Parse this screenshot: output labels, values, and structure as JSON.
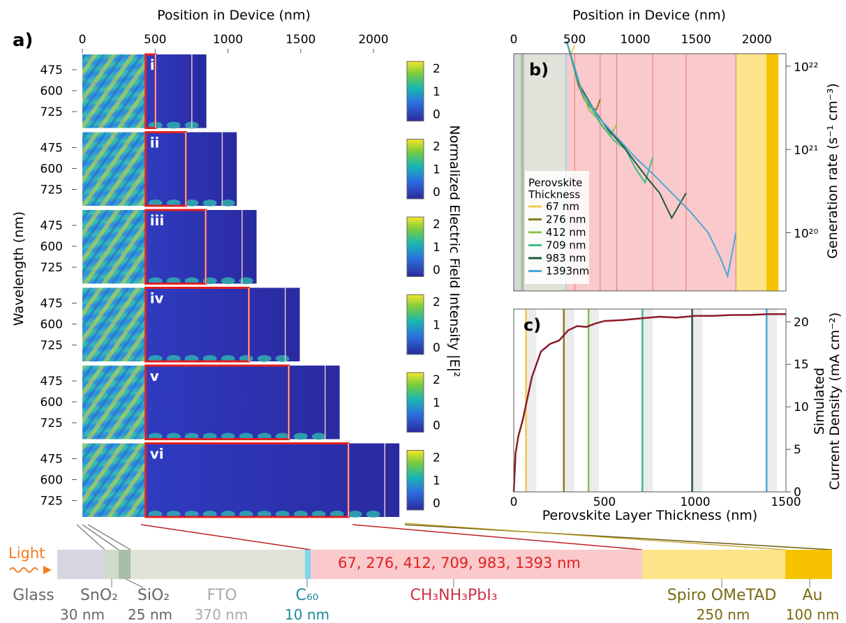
{
  "panel_a": {
    "label": "a)",
    "top_axis_label": "Position in Device (nm)",
    "top_ticks": [
      "0",
      "500",
      "1000",
      "1500",
      "2000"
    ],
    "ylabel": "Wavelength (nm)",
    "y_ticks": [
      "475",
      "600",
      "725"
    ],
    "colorbar_label": "Normalized Electric Field Intensity  |E|²",
    "colorbar_ticks": [
      "2",
      "1",
      "0"
    ],
    "subpanels": [
      {
        "roman": "i",
        "perovskite_nm": 67
      },
      {
        "roman": "ii",
        "perovskite_nm": 276
      },
      {
        "roman": "iii",
        "perovskite_nm": 412
      },
      {
        "roman": "iv",
        "perovskite_nm": 709
      },
      {
        "roman": "v",
        "perovskite_nm": 983
      },
      {
        "roman": "vi",
        "perovskite_nm": 1393
      }
    ]
  },
  "chart_data": [
    {
      "type": "line",
      "panel": "b)",
      "title": "",
      "xlabel": "Position in Device (nm)",
      "ylabel": "Generation rate (s⁻¹ cm⁻³)",
      "x_ticks": [
        "0",
        "500",
        "1000",
        "1500",
        "2000"
      ],
      "y_ticks": [
        "10²²",
        "10²¹",
        "10²⁰"
      ],
      "yscale": "log",
      "legend_title": "Perovskite Thickness",
      "legend_placement": "center-left",
      "series": [
        {
          "name": "67 nm",
          "color": "#f2c94c",
          "x": [
            435,
            470,
            502
          ],
          "y": [
            2e+22,
            1.4e+22,
            1.8e+22
          ]
        },
        {
          "name": "276 nm",
          "color": "#8a7a1c",
          "x": [
            435,
            480,
            530,
            580,
            630,
            680,
            711
          ],
          "y": [
            2e+22,
            1.2e+22,
            6e+21,
            4e+21,
            3.2e+21,
            3e+21,
            4e+21
          ]
        },
        {
          "name": "412 nm",
          "color": "#8bc34a",
          "x": [
            435,
            500,
            560,
            620,
            680,
            740,
            800,
            847
          ],
          "y": [
            2e+22,
            1e+22,
            5e+21,
            3e+21,
            2.4e+21,
            1.8e+21,
            1.5e+21,
            2e+21
          ]
        },
        {
          "name": "709 nm",
          "color": "#3cbf86",
          "x": [
            435,
            520,
            620,
            720,
            820,
            920,
            1000,
            1080,
            1144
          ],
          "y": [
            2e+22,
            7e+21,
            3.5e+21,
            2e+21,
            1.3e+21,
            1e+21,
            6e+20,
            4e+20,
            8e+20
          ]
        },
        {
          "name": "983 nm",
          "color": "#1e5a3c",
          "x": [
            435,
            540,
            660,
            780,
            900,
            1000,
            1100,
            1200,
            1300,
            1418
          ],
          "y": [
            2e+22,
            6e+21,
            3e+21,
            1.7e+21,
            1.1e+21,
            7e+20,
            4.5e+20,
            3e+20,
            1.5e+20,
            3e+20
          ]
        },
        {
          "name": "1393nm",
          "color": "#4aa8d8",
          "x": [
            435,
            560,
            700,
            850,
            1000,
            1150,
            1300,
            1450,
            1600,
            1700,
            1760,
            1828
          ],
          "y": [
            2e+22,
            5e+21,
            2.4e+21,
            1.4e+21,
            8e+20,
            5e+20,
            3e+20,
            1.8e+20,
            1e+20,
            5e+19,
            3e+19,
            1e+20
          ]
        }
      ]
    },
    {
      "type": "line",
      "panel": "c)",
      "title": "",
      "xlabel": "Perovskite Layer Thickness (nm)",
      "ylabel": "Simulated Current Density (mA cm⁻²)",
      "x_ticks": [
        "0",
        "500",
        "1000",
        "1500"
      ],
      "y_ticks": [
        "0",
        "5",
        "10",
        "15",
        "20"
      ],
      "xlim": [
        0,
        1500
      ],
      "ylim": [
        0,
        21.5
      ],
      "series": [
        {
          "name": "",
          "color": "#8b1a2b",
          "x": [
            0,
            10,
            25,
            50,
            75,
            100,
            150,
            200,
            250,
            300,
            350,
            400,
            450,
            500,
            600,
            700,
            800,
            900,
            1000,
            1100,
            1200,
            1300,
            1400,
            1500
          ],
          "y": [
            0,
            4.5,
            6.5,
            8.5,
            11,
            13.5,
            16.5,
            17.4,
            17.8,
            19.0,
            19.5,
            19.4,
            19.8,
            20.1,
            20.2,
            20.4,
            20.6,
            20.5,
            20.7,
            20.7,
            20.8,
            20.8,
            20.9,
            20.9
          ]
        }
      ],
      "markers": [
        {
          "x": 67,
          "color": "#f2c94c"
        },
        {
          "x": 276,
          "color": "#8a7a1c"
        },
        {
          "x": 412,
          "color": "#8bc34a"
        },
        {
          "x": 709,
          "color": "#3cbf86"
        },
        {
          "x": 983,
          "color": "#1e5a3c"
        },
        {
          "x": 1393,
          "color": "#4aa8d8"
        }
      ]
    }
  ],
  "stack": {
    "light_label": "Light",
    "perovskite_values": "67, 276, 412, 709, 983, 1393  nm",
    "layers": [
      {
        "name": "Glass",
        "thickness": ""
      },
      {
        "name": "SnO₂",
        "thickness": "30 nm"
      },
      {
        "name": "SiO₂",
        "thickness": "25 nm"
      },
      {
        "name": "FTO",
        "thickness": "370 nm"
      },
      {
        "name": "C₆₀",
        "thickness": "10 nm"
      },
      {
        "name": "CH₃NH₃PbI₃",
        "thickness": ""
      },
      {
        "name": "Spiro OMeTAD",
        "thickness": "250 nm"
      },
      {
        "name": "Au",
        "thickness": "100 nm"
      }
    ]
  },
  "colors": {
    "glass": "#d6d5e0",
    "sno2": "#cfdccb",
    "sio2": "#a7bea4",
    "fto": "#e1e2da",
    "c60": "#7fd8ea",
    "perovskite": "#f9c9cb",
    "spiro": "#fde38a",
    "au": "#f6c200",
    "red_accent": "#e02020",
    "curve": "#8b1a2b"
  }
}
